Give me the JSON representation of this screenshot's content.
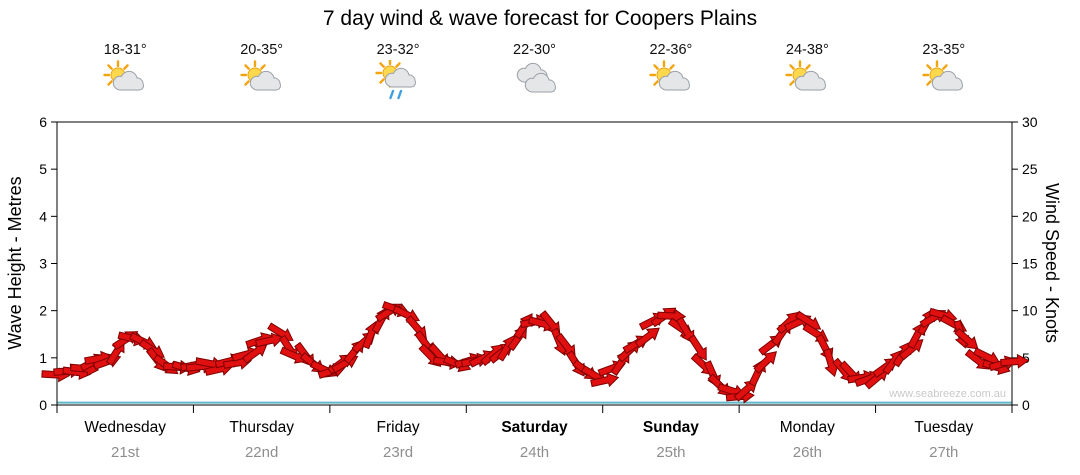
{
  "title": "7 day wind & wave forecast for Coopers Plains",
  "watermark": "www.seabreeze.com.au",
  "days": [
    {
      "name": "Wednesday",
      "date": "21st",
      "temp": "18-31°",
      "icon": "sun-cloud",
      "weekend": false
    },
    {
      "name": "Thursday",
      "date": "22nd",
      "temp": "20-35°",
      "icon": "sun-cloud",
      "weekend": false
    },
    {
      "name": "Friday",
      "date": "23rd",
      "temp": "23-32°",
      "icon": "sun-cloud-rain",
      "weekend": false
    },
    {
      "name": "Saturday",
      "date": "24th",
      "temp": "22-30°",
      "icon": "clouds",
      "weekend": true
    },
    {
      "name": "Sunday",
      "date": "25th",
      "temp": "22-36°",
      "icon": "sun-cloud",
      "weekend": true
    },
    {
      "name": "Monday",
      "date": "26th",
      "temp": "24-38°",
      "icon": "sun-cloud",
      "weekend": false
    },
    {
      "name": "Tuesday",
      "date": "27th",
      "temp": "23-35°",
      "icon": "sun-cloud",
      "weekend": false
    }
  ],
  "chart_data": {
    "type": "line",
    "title": "7 day wind & wave forecast for Coopers Plains",
    "x_axis": {
      "unit": "hours",
      "range": [
        0,
        168
      ],
      "day_labels": [
        "Wednesday 21st",
        "Thursday 22nd",
        "Friday 23rd",
        "Saturday 24th",
        "Sunday 25th",
        "Monday 26th",
        "Tuesday 27th"
      ]
    },
    "left_axis": {
      "label": "Wave Height - Metres",
      "min": 0,
      "max": 6,
      "ticks": [
        0,
        1,
        2,
        3,
        4,
        5,
        6
      ]
    },
    "right_axis": {
      "label": "Wind Speed - Knots",
      "min": 0,
      "max": 30,
      "ticks": [
        0,
        5,
        10,
        15,
        20,
        25,
        30
      ]
    },
    "series": [
      {
        "name": "Wind Speed",
        "axis": "right",
        "unit": "knots",
        "style": "red-wind-arrows",
        "step_hours": 3,
        "values": [
          3.5,
          3.8,
          4.2,
          4.8,
          7,
          6.3,
          4.6,
          4,
          3.8,
          4,
          4.3,
          5,
          6.5,
          7.5,
          5.5,
          4.2,
          3.6,
          4.5,
          6.5,
          9,
          10.5,
          8.5,
          5.5,
          4.6,
          4.2,
          4.8,
          5.5,
          7,
          9,
          8.3,
          5.8,
          3.5,
          3,
          4.5,
          6.5,
          8.5,
          9.5,
          7.5,
          4.5,
          2,
          1,
          3,
          6,
          8.5,
          9,
          6.5,
          3.5,
          2.5,
          3,
          4.5,
          6,
          8.5,
          10,
          8,
          5,
          4.5,
          4.8
        ]
      },
      {
        "name": "Wave Height",
        "axis": "left",
        "unit": "metres",
        "style": "teal-line",
        "constant": 0.05
      }
    ],
    "colors": {
      "arrow_fill": "#e01010",
      "arrow_stroke": "#7d0000",
      "wave_line": "#5fb6c6",
      "frame": "#000000"
    },
    "legend": false,
    "grid": false
  }
}
